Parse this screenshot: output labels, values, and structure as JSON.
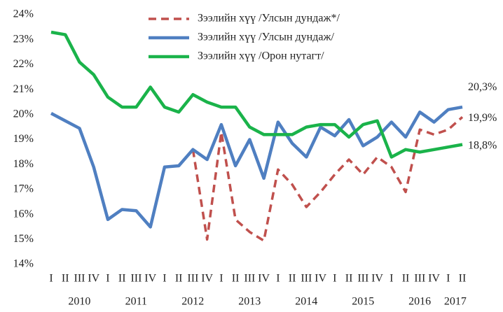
{
  "chart_data": {
    "type": "line",
    "categories": [
      "I",
      "II",
      "III",
      "IV",
      "I",
      "II",
      "III",
      "IV",
      "I",
      "II",
      "III",
      "IV",
      "I",
      "II",
      "III",
      "IV",
      "I",
      "II",
      "III",
      "IV",
      "I",
      "II",
      "III",
      "IV",
      "I",
      "II",
      "III",
      "IV",
      "I",
      "II"
    ],
    "years": [
      "2010",
      "2011",
      "2012",
      "2013",
      "2014",
      "2015",
      "2016",
      "2017"
    ],
    "series": [
      {
        "name": "Зээлийн хүү /Улсын дундаж*/",
        "color": "#c0504d",
        "dashed": true,
        "values": [
          null,
          null,
          null,
          null,
          null,
          null,
          null,
          null,
          null,
          null,
          18.6,
          15.0,
          19.3,
          15.8,
          15.3,
          14.95,
          17.8,
          17.2,
          16.3,
          16.9,
          17.6,
          18.2,
          17.6,
          18.3,
          17.9,
          16.9,
          19.4,
          19.2,
          19.4,
          19.9
        ],
        "end_label": "19,9%"
      },
      {
        "name": "Зээлийн хүү /Улсын дундаж/",
        "color": "#4f7fc1",
        "dashed": false,
        "values": [
          20.05,
          19.75,
          19.45,
          17.9,
          15.8,
          16.2,
          16.15,
          15.5,
          17.9,
          17.95,
          18.6,
          18.2,
          19.6,
          17.95,
          19.0,
          17.45,
          19.7,
          18.85,
          18.3,
          19.5,
          19.15,
          19.8,
          18.75,
          19.1,
          19.7,
          19.1,
          20.1,
          19.7,
          20.2,
          20.3
        ],
        "end_label": "20,3%"
      },
      {
        "name": "Зээлийн хүү /Орон нутагт/",
        "color": "#1ab34a",
        "dashed": false,
        "values": [
          23.3,
          23.2,
          22.1,
          21.6,
          20.7,
          20.3,
          20.3,
          21.1,
          20.3,
          20.1,
          20.8,
          20.5,
          20.3,
          20.3,
          19.5,
          19.2,
          19.2,
          19.2,
          19.5,
          19.6,
          19.6,
          19.1,
          19.6,
          19.75,
          18.3,
          18.6,
          18.5,
          18.6,
          18.7,
          18.8
        ],
        "end_label": "18,8%"
      }
    ],
    "ylim": [
      14,
      24
    ],
    "yticks": [
      {
        "value": 14,
        "label": "14%"
      },
      {
        "value": 15,
        "label": "15%"
      },
      {
        "value": 16,
        "label": "16%"
      },
      {
        "value": 17,
        "label": "17%"
      },
      {
        "value": 18,
        "label": "18%"
      },
      {
        "value": 19,
        "label": "19%"
      },
      {
        "value": 20,
        "label": "20%"
      },
      {
        "value": 21,
        "label": "21%"
      },
      {
        "value": 22,
        "label": "22%"
      },
      {
        "value": 23,
        "label": "23%"
      },
      {
        "value": 24,
        "label": "24%"
      }
    ],
    "grid": false,
    "legend": "top"
  }
}
